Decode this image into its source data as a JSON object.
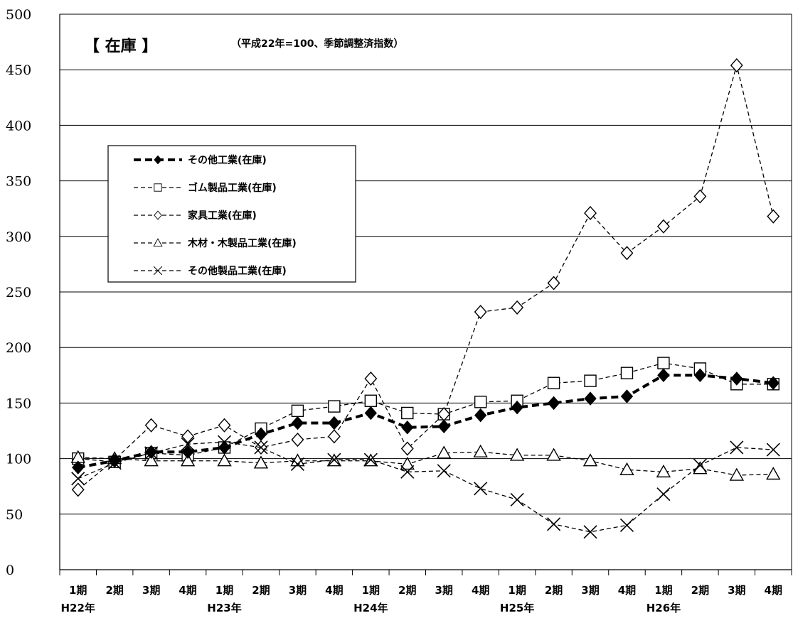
{
  "chart_data": {
    "type": "line",
    "title": "【 在庫 】",
    "subtitle": "（平成22年=100、季節調整済指数）",
    "ylim": [
      0,
      500
    ],
    "yticks": [
      0,
      50,
      100,
      150,
      200,
      250,
      300,
      350,
      400,
      450,
      500
    ],
    "grid": true,
    "legend_position": "upper-left",
    "categories": [
      "1期",
      "2期",
      "3期",
      "4期",
      "1期",
      "2期",
      "3期",
      "4期",
      "1期",
      "2期",
      "3期",
      "4期",
      "1期",
      "2期",
      "3期",
      "4期",
      "1期",
      "2期",
      "3期",
      "4期"
    ],
    "year_labels": [
      {
        "label": "H22年",
        "index": 0
      },
      {
        "label": "H23年",
        "index": 4
      },
      {
        "label": "H24年",
        "index": 8
      },
      {
        "label": "H25年",
        "index": 12
      },
      {
        "label": "H26年",
        "index": 16
      }
    ],
    "series": [
      {
        "name": "その他工業(在庫)",
        "marker": "filled-diamond",
        "line": "bold-dash",
        "values": [
          92,
          98,
          106,
          106,
          110,
          122,
          132,
          132,
          141,
          128,
          129,
          139,
          146,
          150,
          154,
          156,
          175,
          175,
          172,
          168
        ]
      },
      {
        "name": "ゴム製品工業(在庫)",
        "marker": "square",
        "line": "dash",
        "values": [
          100,
          97,
          105,
          103,
          110,
          127,
          143,
          147,
          152,
          141,
          140,
          151,
          152,
          168,
          170,
          177,
          186,
          181,
          167,
          167
        ]
      },
      {
        "name": "家具工業(在庫)",
        "marker": "diamond",
        "line": "dash",
        "values": [
          72,
          99,
          130,
          120,
          130,
          110,
          117,
          120,
          172,
          109,
          140,
          232,
          236,
          258,
          321,
          285,
          309,
          336,
          454,
          318
        ]
      },
      {
        "name": "木材・木製品工業(在庫)",
        "marker": "triangle",
        "line": "dash",
        "values": [
          101,
          100,
          98,
          98,
          98,
          96,
          98,
          98,
          98,
          95,
          105,
          106,
          103,
          103,
          98,
          90,
          88,
          91,
          85,
          86
        ]
      },
      {
        "name": "その他製品工業(在庫)",
        "marker": "cross",
        "line": "dash",
        "values": [
          82,
          96,
          105,
          113,
          115,
          110,
          95,
          99,
          99,
          88,
          89,
          73,
          63,
          41,
          34,
          40,
          68,
          94,
          110,
          108
        ]
      }
    ]
  }
}
